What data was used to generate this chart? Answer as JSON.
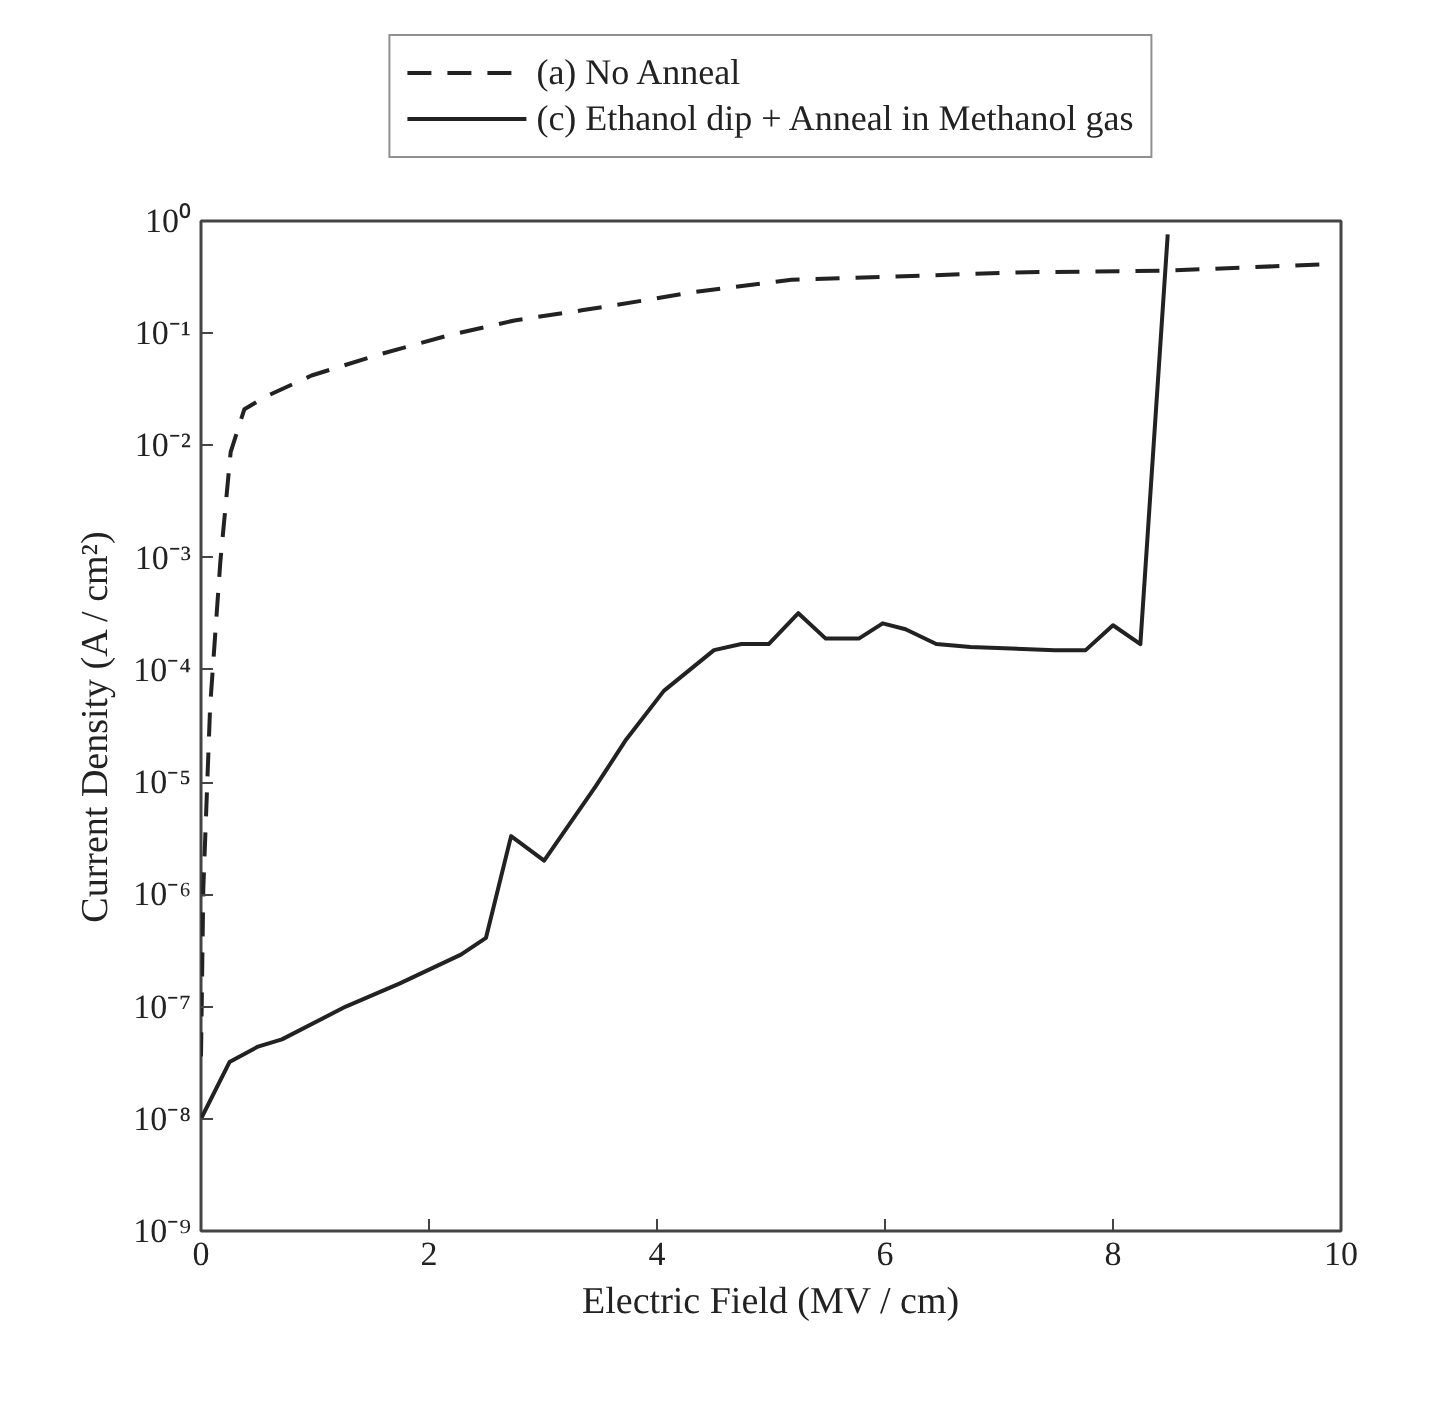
{
  "chart_data": {
    "type": "line",
    "xlabel": "Electric Field (MV / cm)",
    "ylabel": "Current Density (A / cm²)",
    "log": "y",
    "grid": false,
    "legend": "top",
    "marker": "none",
    "xlim": [
      0,
      10
    ],
    "xticks": [
      0,
      2,
      4,
      6,
      8,
      10
    ],
    "ylim": [
      1e-09,
      1
    ],
    "yticks": [
      {
        "value": 1e-09,
        "label": "10⁻⁹"
      },
      {
        "value": 1e-08,
        "label": "10⁻⁸"
      },
      {
        "value": 1e-07,
        "label": "10⁻⁷"
      },
      {
        "value": 1e-06,
        "label": "10⁻⁶"
      },
      {
        "value": 1e-05,
        "label": "10⁻⁵"
      },
      {
        "value": 0.0001,
        "label": "10⁻⁴"
      },
      {
        "value": 0.001,
        "label": "10⁻³"
      },
      {
        "value": 0.01,
        "label": "10⁻²"
      },
      {
        "value": 0.1,
        "label": "10⁻¹"
      },
      {
        "value": 1,
        "label": "10⁰"
      }
    ],
    "series": [
      {
        "name": "(a) No Anneal",
        "color": "#222222",
        "line_style": "dashed",
        "x": [
          0,
          0.02,
          0.08,
          0.17,
          0.26,
          0.38,
          0.56,
          0.97,
          1.57,
          2.16,
          2.75,
          3.34,
          3.94,
          4.29,
          5.18,
          6.06,
          7.25,
          8.44,
          9.81
        ],
        "values": [
          3.6e-08,
          1.1e-06,
          4.7e-05,
          0.00093,
          0.0087,
          0.021,
          0.027,
          0.042,
          0.065,
          0.095,
          0.13,
          0.16,
          0.2,
          0.23,
          0.3,
          0.32,
          0.35,
          0.36,
          0.41
        ]
      },
      {
        "name": "(c) Ethanol dip + Anneal in Methanol gas",
        "color": "#222222",
        "line_style": "solid",
        "x": [
          0,
          0.25,
          0.5,
          0.71,
          1.27,
          1.74,
          2.28,
          2.5,
          2.72,
          3.01,
          3.46,
          3.73,
          4.06,
          4.5,
          4.74,
          4.98,
          5.24,
          5.48,
          5.77,
          5.98,
          6.18,
          6.45,
          6.75,
          7.49,
          7.76,
          8.0,
          8.24,
          8.48
        ],
        "values": [
          1e-08,
          3.2e-08,
          4.4e-08,
          5.1e-08,
          1e-07,
          1.6e-07,
          2.9e-07,
          4.1e-07,
          3.3e-06,
          2e-06,
          9.1e-06,
          2.4e-05,
          6.5e-05,
          0.00015,
          0.00017,
          0.00017,
          0.00032,
          0.00019,
          0.00019,
          0.00026,
          0.00023,
          0.00017,
          0.00016,
          0.00015,
          0.00015,
          0.00025,
          0.00017,
          0.76
        ]
      }
    ]
  }
}
